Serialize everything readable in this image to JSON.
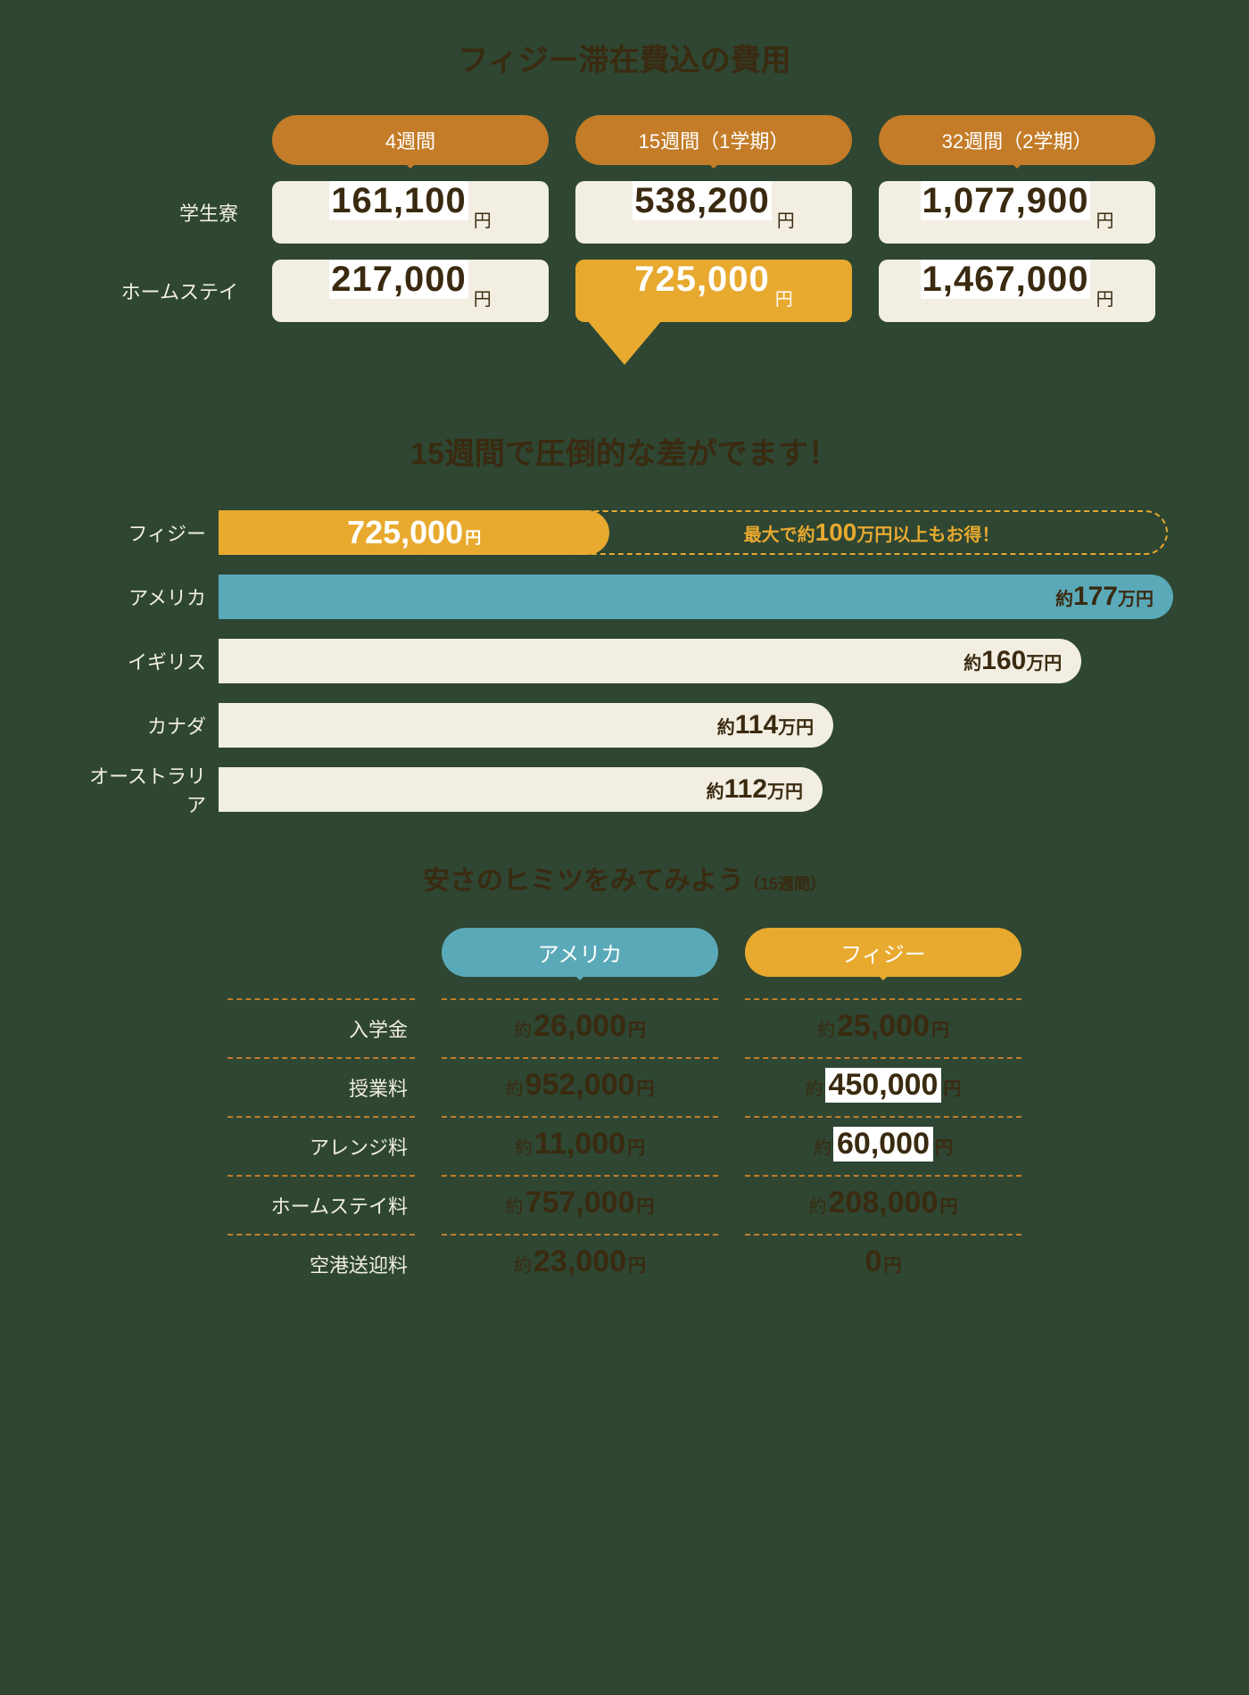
{
  "colors": {
    "background": "#2e4632",
    "cream": "#f2eee2",
    "brown_header": "#c47c28",
    "orange": "#e8a92f",
    "teal": "#5aa9b8",
    "text_dark": "#3a2a10",
    "text_light": "#f2eee2"
  },
  "section1": {
    "title": "フィジー滞在費込の費用",
    "col_headers": [
      "4週間",
      "15週間（1学期）",
      "32週間（2学期）"
    ],
    "rows": [
      {
        "label": "学生寮",
        "vals": [
          "161,100",
          "538,200",
          "1,077,900"
        ]
      },
      {
        "label": "ホームステイ",
        "vals": [
          "217,000",
          "725,000",
          "1,467,000"
        ]
      }
    ],
    "highlight": {
      "row": 1,
      "col": 1
    },
    "yen": "円"
  },
  "section2": {
    "title": "15週間で圧倒的な差がでます！",
    "max_value": 177,
    "savings_note_pre": "最大で約",
    "savings_note_num": "100",
    "savings_note_post": "万円以上もお得！",
    "bars": [
      {
        "label": "フィジー",
        "value": 72.5,
        "display": "725,000",
        "unit": "円",
        "color": "#e8a92f",
        "text": "#ffffff",
        "fiji": true
      },
      {
        "label": "アメリカ",
        "value": 177,
        "display": "177",
        "unit": "万円",
        "color": "#5aa9b8",
        "text": "#3a2a10",
        "approx": "約"
      },
      {
        "label": "イギリス",
        "value": 160,
        "display": "160",
        "unit": "万円",
        "color": "#f2eee2",
        "text": "#3a2a10",
        "approx": "約"
      },
      {
        "label": "カナダ",
        "value": 114,
        "display": "114",
        "unit": "万円",
        "color": "#f2eee2",
        "text": "#3a2a10",
        "approx": "約"
      },
      {
        "label": "オーストラリア",
        "value": 112,
        "display": "112",
        "unit": "万円",
        "color": "#f2eee2",
        "text": "#3a2a10",
        "approx": "約"
      }
    ]
  },
  "section3": {
    "title_main": "安さのヒミツをみてみよう",
    "title_sub": "（15週間）",
    "col_headers": [
      {
        "label": "アメリカ",
        "class": "america"
      },
      {
        "label": "フィジー",
        "class": "fiji"
      }
    ],
    "rows": [
      {
        "label": "入学金",
        "america": "26,000",
        "fiji": "25,000",
        "fiji_white": false
      },
      {
        "label": "授業料",
        "america": "952,000",
        "fiji": "450,000",
        "fiji_white": true
      },
      {
        "label": "アレンジ料",
        "america": "11,000",
        "fiji": "60,000",
        "fiji_white": true,
        "fiji_approx_hidden": true
      },
      {
        "label": "ホームステイ料",
        "america": "757,000",
        "fiji": "208,000",
        "fiji_white": false
      },
      {
        "label": "空港送迎料",
        "america": "23,000",
        "fiji": "0",
        "fiji_white": false,
        "fiji_no_approx": true
      }
    ],
    "approx": "約",
    "yen": "円"
  }
}
